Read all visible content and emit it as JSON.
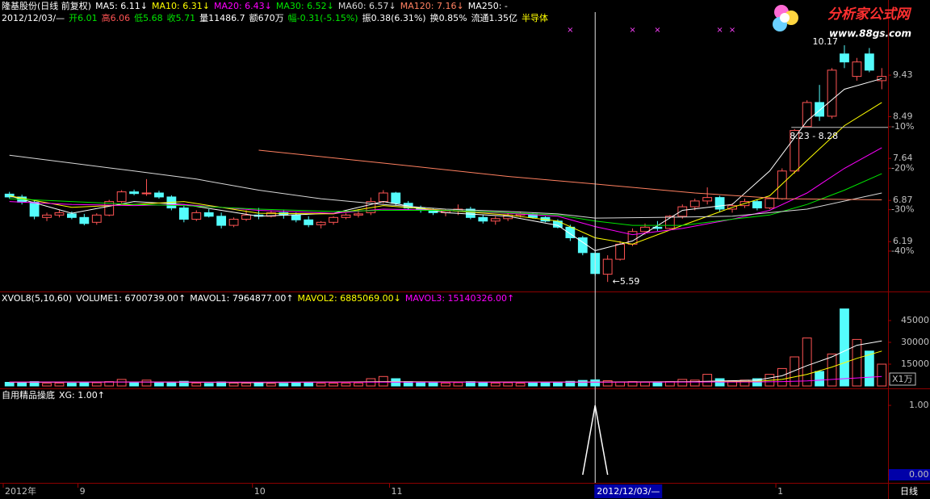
{
  "header": {
    "quote": [
      {
        "text": "2012/12/03/—",
        "color": "#ffffff"
      },
      {
        "text": "开6.01",
        "color": "#00e600"
      },
      {
        "text": "高6.06",
        "color": "#ff5454"
      },
      {
        "text": "低5.68",
        "color": "#00e600"
      },
      {
        "text": "收5.71",
        "color": "#00e600"
      },
      {
        "text": "量11486.7",
        "color": "#ffffff"
      },
      {
        "text": "额670万",
        "color": "#ffffff"
      },
      {
        "text": "幅-0.31(-5.15%)",
        "color": "#00e600"
      },
      {
        "text": "振0.38(6.31%)",
        "color": "#ffffff"
      },
      {
        "text": "换0.85%",
        "color": "#ffffff"
      },
      {
        "text": "流通1.35亿",
        "color": "#ffffff"
      },
      {
        "text": "半导体",
        "color": "#ffff00"
      }
    ]
  },
  "logo": {
    "name": "分析家公式网",
    "url": "www.88gs.com"
  },
  "chart_data": [
    {
      "type": "candlestick",
      "title": "隆基股份(日线 前复权)",
      "log": true,
      "up_color": "#ff5454",
      "down_color": "#54fcfc",
      "open": [
        6.98,
        6.93,
        6.84,
        6.58,
        6.62,
        6.64,
        6.58,
        6.5,
        6.62,
        6.85,
        7.02,
        6.99,
        7,
        6.93,
        6.74,
        6.55,
        6.66,
        6.6,
        6.45,
        6.55,
        6.62,
        6.6,
        6.66,
        6.62,
        6.54,
        6.46,
        6.5,
        6.58,
        6.62,
        6.66,
        6.85,
        7,
        6.82,
        6.74,
        6.7,
        6.66,
        6.69,
        6.72,
        6.58,
        6.52,
        6.56,
        6.62,
        6.64,
        6.58,
        6.52,
        6.42,
        6.25,
        6.01,
        5.7,
        5.92,
        6.15,
        6.35,
        6.42,
        6.4,
        6.6,
        6.76,
        6.86,
        6.92,
        6.72,
        6.78,
        6.85,
        6.74,
        6.9,
        7.4,
        8.28,
        8.8,
        8.5,
        9.95,
        9.4,
        9.95,
        9.3
      ],
      "high": [
        7.02,
        6.97,
        6.88,
        6.66,
        6.7,
        6.68,
        6.64,
        6.65,
        6.88,
        7.05,
        7.06,
        7.25,
        7.04,
        6.96,
        6.78,
        6.7,
        6.72,
        6.66,
        6.58,
        6.7,
        6.74,
        6.7,
        6.7,
        6.66,
        6.6,
        6.52,
        6.6,
        6.65,
        6.72,
        6.92,
        7.05,
        7.02,
        6.86,
        6.78,
        6.74,
        6.72,
        6.8,
        6.76,
        6.62,
        6.6,
        6.66,
        6.68,
        6.66,
        6.6,
        6.55,
        6.46,
        6.28,
        6.06,
        5.98,
        6.2,
        6.4,
        6.48,
        6.52,
        6.62,
        6.8,
        6.9,
        7.1,
        6.95,
        6.82,
        6.9,
        6.88,
        6.92,
        7.45,
        8.23,
        8.85,
        9.2,
        9.6,
        10.17,
        9.85,
        10.1,
        9.6
      ],
      "low": [
        6.9,
        6.8,
        6.55,
        6.52,
        6.58,
        6.55,
        6.45,
        6.46,
        6.6,
        6.82,
        6.96,
        6.95,
        6.9,
        6.7,
        6.5,
        6.52,
        6.58,
        6.4,
        6.42,
        6.52,
        6.55,
        6.58,
        6.56,
        6.5,
        6.42,
        6.4,
        6.46,
        6.55,
        6.58,
        6.62,
        6.82,
        6.78,
        6.7,
        6.66,
        6.62,
        6.6,
        6.62,
        6.55,
        6.48,
        6.46,
        6.52,
        6.58,
        6.56,
        6.5,
        6.4,
        6.2,
        5.98,
        5.68,
        5.59,
        5.9,
        6.12,
        6.3,
        6.36,
        6.38,
        6.56,
        6.7,
        6.8,
        6.68,
        6.66,
        6.74,
        6.7,
        6.72,
        6.88,
        7.35,
        8.28,
        8.4,
        8.45,
        9.6,
        9.3,
        9.5,
        9.1
      ],
      "close": [
        6.93,
        6.84,
        6.6,
        6.62,
        6.66,
        6.58,
        6.48,
        6.62,
        6.85,
        7.02,
        6.99,
        7,
        6.93,
        6.74,
        6.55,
        6.66,
        6.6,
        6.45,
        6.55,
        6.62,
        6.6,
        6.66,
        6.62,
        6.54,
        6.46,
        6.5,
        6.58,
        6.62,
        6.64,
        6.85,
        7,
        6.82,
        6.74,
        6.7,
        6.66,
        6.69,
        6.72,
        6.58,
        6.52,
        6.56,
        6.62,
        6.64,
        6.58,
        6.52,
        6.42,
        6.25,
        6.02,
        5.71,
        5.92,
        6.15,
        6.35,
        6.42,
        6.4,
        6.6,
        6.76,
        6.86,
        6.92,
        6.72,
        6.78,
        6.85,
        6.74,
        6.9,
        7.4,
        8.2,
        8.8,
        8.5,
        9.55,
        9.75,
        9.75,
        9.55,
        9.4
      ],
      "ylim": [
        5.49,
        11.06
      ],
      "yticks": [
        6.19,
        6.87,
        7.64,
        8.49,
        9.43
      ],
      "y2lim": [
        -49.16,
        17.66
      ],
      "y2ticks": [
        {
          "value": -10,
          "label": "-10%"
        },
        {
          "value": -20,
          "label": "-20%"
        },
        {
          "value": -30,
          "label": "-30%"
        },
        {
          "value": -40,
          "label": "-40%"
        }
      ],
      "series": [
        {
          "name": "MA5: 6.11↓",
          "color": "#ffffff",
          "x": [
            0,
            5,
            10,
            14,
            20,
            26,
            30,
            35,
            40,
            44,
            47,
            50,
            54,
            58,
            61,
            64,
            67,
            70
          ],
          "values": [
            6.95,
            6.65,
            6.85,
            6.8,
            6.6,
            6.65,
            6.85,
            6.66,
            6.6,
            6.45,
            6.05,
            6.2,
            6.7,
            6.8,
            7.4,
            8.4,
            9.1,
            9.35
          ]
        },
        {
          "name": "MA10: 6.31↓",
          "color": "#ffff00",
          "x": [
            0,
            5,
            10,
            14,
            20,
            26,
            30,
            35,
            40,
            44,
            47,
            50,
            54,
            58,
            61,
            64,
            67,
            70
          ],
          "values": [
            6.95,
            6.75,
            6.8,
            6.85,
            6.65,
            6.64,
            6.78,
            6.7,
            6.62,
            6.52,
            6.25,
            6.15,
            6.45,
            6.75,
            6.95,
            7.6,
            8.3,
            8.8
          ]
        },
        {
          "name": "MA20: 6.43↓",
          "color": "#ff00ff",
          "x": [
            0,
            5,
            10,
            14,
            20,
            26,
            30,
            35,
            40,
            44,
            47,
            50,
            54,
            58,
            61,
            64,
            67,
            70
          ],
          "values": [
            6.85,
            6.8,
            6.78,
            6.8,
            6.7,
            6.65,
            6.72,
            6.7,
            6.65,
            6.6,
            6.43,
            6.3,
            6.4,
            6.55,
            6.7,
            7,
            7.45,
            7.85
          ]
        },
        {
          "name": "MA30: 6.52↓",
          "color": "#00e600",
          "x": [
            0,
            5,
            10,
            14,
            20,
            26,
            30,
            35,
            40,
            44,
            47,
            50,
            54,
            58,
            61,
            64,
            67,
            70
          ],
          "values": [
            6.9,
            6.85,
            6.8,
            6.78,
            6.72,
            6.68,
            6.7,
            6.7,
            6.66,
            6.62,
            6.52,
            6.45,
            6.45,
            6.55,
            6.62,
            6.8,
            7.05,
            7.35
          ]
        },
        {
          "name": "MA60: 6.57↓",
          "color": "#d8d8d8",
          "x": [
            0,
            5,
            10,
            15,
            20,
            25,
            30,
            35,
            40,
            44,
            47,
            52,
            58,
            64,
            70
          ],
          "values": [
            7.7,
            7.55,
            7.4,
            7.25,
            7.05,
            6.9,
            6.8,
            6.72,
            6.68,
            6.64,
            6.57,
            6.58,
            6.6,
            6.72,
            7
          ]
        },
        {
          "name": "MA120: 7.16↓",
          "color": "#ff8060",
          "x": [
            20,
            30,
            40,
            47,
            55,
            62,
            70
          ],
          "values": [
            7.8,
            7.55,
            7.3,
            7.16,
            7,
            6.9,
            6.88
          ]
        },
        {
          "name": "MA250: -",
          "color": "#ffffff",
          "x": [],
          "values": []
        }
      ],
      "signals": {
        "color": "#ff40ff",
        "x": [
          45,
          50,
          52,
          57,
          58
        ]
      },
      "annotations": [
        {
          "text": "10.17",
          "x": 67,
          "y": 10.17
        },
        {
          "text": "8.23 - 8.28",
          "x": 63,
          "y": 8.28
        },
        {
          "text": "←5.59",
          "x": 48,
          "y": 5.59
        }
      ],
      "xticks": [
        {
          "value": 0,
          "label": "2012年"
        },
        {
          "value": 6,
          "label": "9"
        },
        {
          "value": 20,
          "label": "10"
        },
        {
          "value": 31,
          "label": "11"
        },
        {
          "value": 62,
          "label": "1"
        }
      ],
      "cursor": {
        "x": 47,
        "label": "2012/12/03/—"
      },
      "period": "日线"
    },
    {
      "type": "bar",
      "title": "XVOL8(5,10,60)",
      "unit_label": "X1万",
      "series": [
        {
          "name": "VOLUME1: 6700739.00↑",
          "color": "#ffffff",
          "values": [
            2500,
            2200,
            3000,
            1800,
            2000,
            1900,
            2600,
            2200,
            3000,
            4500,
            2500,
            4000,
            2200,
            2600,
            3200,
            2000,
            1800,
            2800,
            2000,
            1900,
            2100,
            1700,
            1800,
            2000,
            2400,
            1800,
            1900,
            2000,
            2100,
            5000,
            6500,
            5000,
            3000,
            2500,
            2200,
            2000,
            2300,
            3000,
            2400,
            2000,
            2200,
            1900,
            2000,
            2300,
            2600,
            3200,
            3800,
            4200,
            3600,
            2800,
            3000,
            2600,
            2500,
            3000,
            4500,
            4000,
            8000,
            5000,
            3500,
            4000,
            5000,
            8000,
            12000,
            20000,
            33000,
            10000,
            22000,
            53000,
            32000,
            24000,
            15000
          ]
        },
        {
          "name": "MAVOL1: 7964877.00↑",
          "color": "#ffffff",
          "x": [
            0,
            10,
            20,
            30,
            40,
            47,
            55,
            60,
            62,
            64,
            66,
            68,
            70
          ],
          "values": [
            2500,
            2800,
            2300,
            3000,
            2600,
            2700,
            3000,
            4000,
            7000,
            14000,
            20000,
            28000,
            31000
          ]
        },
        {
          "name": "MAVOL2: 6885069.00↓",
          "color": "#ffff00",
          "x": [
            0,
            10,
            20,
            30,
            40,
            47,
            55,
            60,
            62,
            64,
            66,
            68,
            70
          ],
          "values": [
            2600,
            2700,
            2500,
            2800,
            2700,
            2600,
            2800,
            3200,
            4500,
            8000,
            13000,
            19000,
            24000
          ]
        },
        {
          "name": "MAVOL3: 15140326.00↑",
          "color": "#ff00ff",
          "x": [
            0,
            10,
            20,
            30,
            40,
            47,
            55,
            60,
            62,
            64,
            66,
            68,
            70
          ],
          "values": [
            2700,
            2700,
            2600,
            2600,
            2650,
            2600,
            2700,
            2800,
            3000,
            3500,
            4500,
            5500,
            6500
          ]
        }
      ],
      "ylim": [
        0,
        55000
      ],
      "yticks": [
        15000,
        30000,
        45000
      ]
    },
    {
      "type": "line",
      "title": "自用精品操底",
      "series": [
        {
          "name": "XG: 1.00↑",
          "color": "#ffffff",
          "x": [
            46,
            47,
            48
          ],
          "values": [
            0,
            1,
            0
          ]
        }
      ],
      "ylim": [
        0,
        1.14
      ],
      "yticks": [
        {
          "value": 1,
          "label": "1.00"
        },
        {
          "value": 0,
          "label": "0.00"
        }
      ]
    }
  ]
}
